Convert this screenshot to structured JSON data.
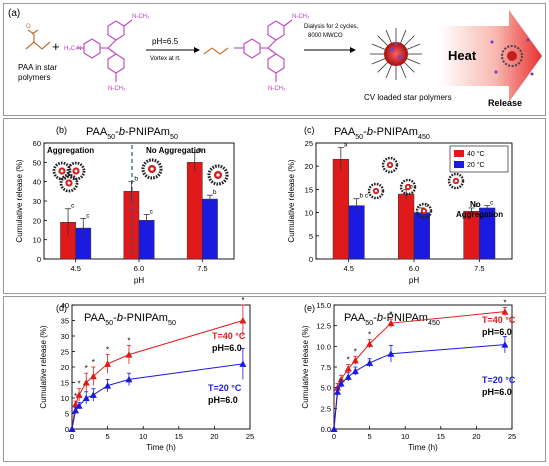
{
  "panel_a": {
    "label": "(a)",
    "paa_label": "PAA in star polymers",
    "plus": "+",
    "ph_label": "pH=6.5",
    "vortex_label": "Vortex at rt.",
    "dialysis_label": "Dialysis for 2 cycles, 8000 MWCO",
    "loaded_label": "CV loaded star polymers",
    "heat_label": "Heat",
    "release_label": "Release",
    "colors": {
      "molecule": "#c040c0",
      "paa": "#c07030",
      "heat_arrow": "#e83030"
    }
  },
  "chart_data": [
    {
      "id": "b",
      "type": "bar",
      "panel_label": "(b)",
      "title": "PAA50-b-PNIPAm50",
      "xlabel": "pH",
      "ylabel": "Cumulative release (%)",
      "categories": [
        "4.5",
        "6.0",
        "7.5"
      ],
      "ylim": [
        0,
        60
      ],
      "yticks": [
        0,
        10,
        20,
        30,
        40,
        50,
        60
      ],
      "series": [
        {
          "color": "#e01a1a",
          "values": [
            19,
            35,
            50
          ],
          "errors": [
            7,
            5,
            5
          ],
          "letters": [
            "c",
            "b",
            "a"
          ]
        },
        {
          "color": "#1a1ae0",
          "values": [
            16,
            20,
            31
          ],
          "errors": [
            5,
            3,
            2
          ],
          "letters": [
            "c",
            "c",
            "b"
          ]
        }
      ],
      "annotations": [
        "Aggregation",
        "No Aggregation"
      ]
    },
    {
      "id": "c",
      "type": "bar",
      "panel_label": "(c)",
      "title": "PAA50-b-PNIPAm450",
      "xlabel": "pH",
      "ylabel": "Cumulative release (%)",
      "categories": [
        "4.5",
        "6.0",
        "7.5"
      ],
      "ylim": [
        0,
        25
      ],
      "yticks": [
        0,
        5,
        10,
        15,
        20,
        25
      ],
      "series": [
        {
          "name": "40 °C",
          "color": "#e01a1a",
          "values": [
            21.5,
            14,
            10.3
          ],
          "errors": [
            2.5,
            1,
            0.7
          ],
          "letters": [
            "a",
            "b",
            "c"
          ]
        },
        {
          "name": "20 °C",
          "color": "#1a1ae0",
          "values": [
            11.5,
            10,
            11
          ],
          "errors": [
            1.5,
            1,
            0.5
          ],
          "letters": [
            "b c",
            "c",
            "c"
          ]
        }
      ],
      "annotations": [
        "No",
        "Aggregation"
      ],
      "legend": "top-right"
    },
    {
      "id": "d",
      "type": "line",
      "panel_label": "(d)",
      "title": "PAA50-b-PNIPAm50",
      "xlabel": "Time (h)",
      "ylabel": "Cumulative release (%)",
      "xlim": [
        0,
        25
      ],
      "ylim": [
        0,
        40
      ],
      "xticks": [
        0,
        5,
        10,
        15,
        20,
        25
      ],
      "yticks": [
        0,
        5,
        10,
        15,
        20,
        25,
        30,
        35,
        40
      ],
      "x": [
        0,
        0.5,
        1,
        2,
        3,
        5,
        8,
        24
      ],
      "series": [
        {
          "name": "T=40 °C",
          "color": "#e01a1a",
          "marker": "triangle",
          "values": [
            0,
            8,
            11,
            15,
            17,
            21,
            24,
            35
          ],
          "errors": [
            0,
            1,
            2,
            3,
            3,
            3,
            3,
            5
          ]
        },
        {
          "name": "T=20 °C",
          "color": "#1a1ae0",
          "marker": "triangle",
          "values": [
            0,
            6,
            7.5,
            10,
            11,
            14,
            16,
            21
          ],
          "errors": [
            0,
            1,
            1,
            2,
            2,
            2,
            2,
            5
          ]
        }
      ],
      "labels": [
        "T=40 °C",
        "pH=6.0",
        "T=20 °C",
        "pH=6.0"
      ],
      "star_points": [
        1,
        2,
        3,
        4,
        5,
        6,
        7
      ],
      "star_symbol": "*"
    },
    {
      "id": "e",
      "type": "line",
      "panel_label": "(e)",
      "title": "PAA50-b-PNIPAm450",
      "xlabel": "Time (h)",
      "ylabel": "Cumulative release (%)",
      "xlim": [
        0,
        25
      ],
      "ylim": [
        0,
        15
      ],
      "xticks": [
        0,
        5,
        10,
        15,
        20,
        25
      ],
      "yticks": [
        "0.0",
        "2.5",
        "5.0",
        "7.5",
        "10.0",
        "12.5",
        "15.0"
      ],
      "x": [
        0,
        0.5,
        1,
        2,
        3,
        5,
        8,
        24
      ],
      "series": [
        {
          "name": "T=40 °C",
          "color": "#e01a1a",
          "marker": "triangle",
          "values": [
            0,
            5,
            6,
            7.3,
            8.3,
            10.3,
            12.8,
            14.2
          ],
          "errors": [
            0,
            0.5,
            0.5,
            0.5,
            0.5,
            0.5,
            0.5,
            0.5
          ]
        },
        {
          "name": "T=20 °C",
          "color": "#1a1ae0",
          "marker": "triangle",
          "values": [
            0,
            4.5,
            5.5,
            6.3,
            7,
            8,
            9.1,
            10.2
          ],
          "errors": [
            0,
            0.5,
            0.5,
            0.5,
            0.5,
            0.5,
            1,
            1
          ]
        }
      ],
      "labels": [
        "T=40 °C",
        "pH=6.0",
        "T=20 °C",
        "pH=6.0"
      ],
      "star_points": [
        3,
        4,
        5,
        6,
        7
      ],
      "star_symbol": "*"
    }
  ]
}
